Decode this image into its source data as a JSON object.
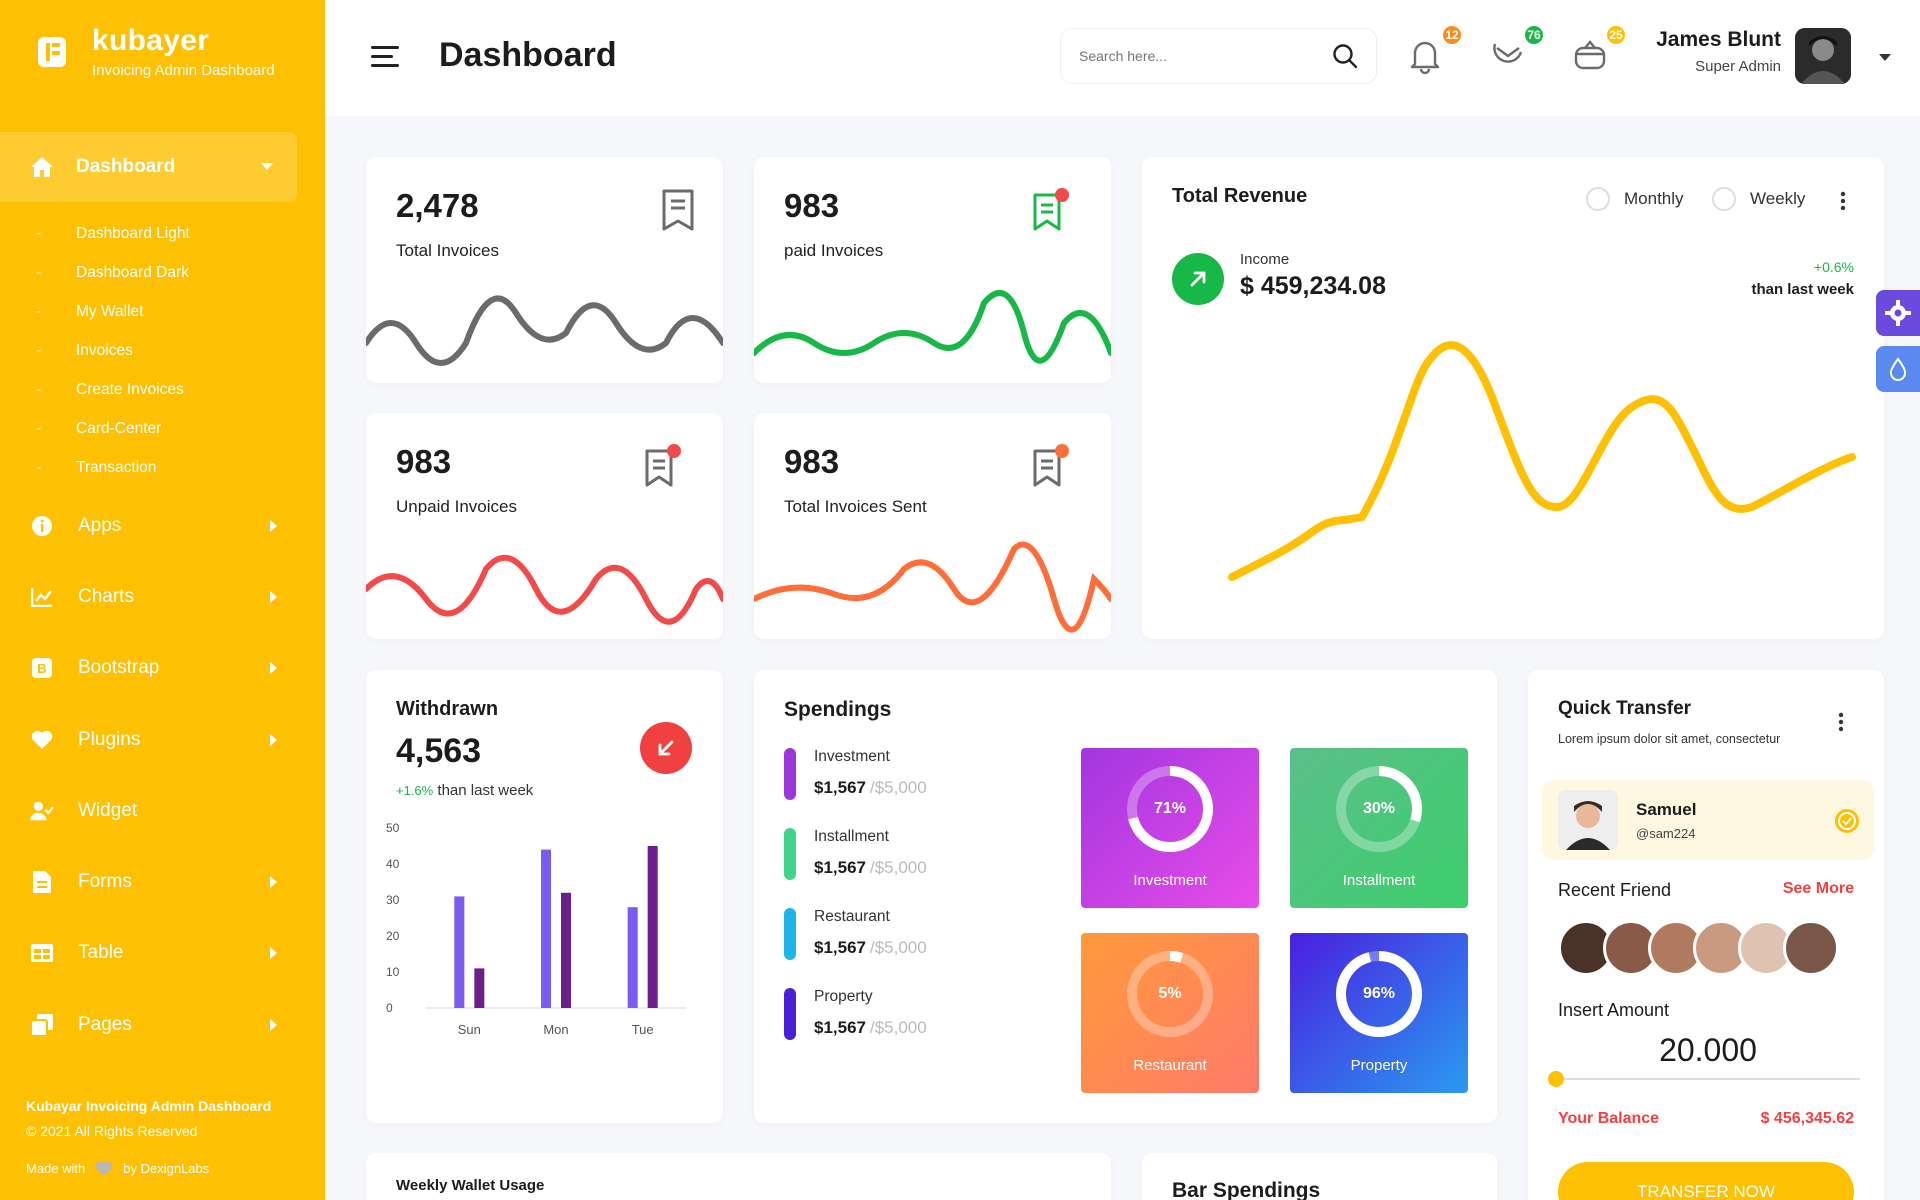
{
  "brand": {
    "name": "kubayer",
    "subtitle": "Invoicing Admin Dashboard"
  },
  "sidebar": {
    "active": {
      "label": "Dashboard",
      "icon": "home-icon"
    },
    "subitems": [
      "Dashboard Light",
      "Dashboard Dark",
      "My Wallet",
      "Invoices",
      "Create Invoices",
      "Card-Center",
      "Transaction"
    ],
    "items": [
      {
        "label": "Apps",
        "icon": "info-icon"
      },
      {
        "label": "Charts",
        "icon": "chart-icon"
      },
      {
        "label": "Bootstrap",
        "icon": "bootstrap-icon"
      },
      {
        "label": "Plugins",
        "icon": "heart-icon"
      },
      {
        "label": "Widget",
        "icon": "user-check-icon"
      },
      {
        "label": "Forms",
        "icon": "file-icon"
      },
      {
        "label": "Table",
        "icon": "table-icon"
      },
      {
        "label": "Pages",
        "icon": "copy-icon"
      }
    ],
    "footer": {
      "title": "Kubayar Invoicing Admin Dashboard",
      "copyright": "© 2021 All Rights Reserved",
      "made_prefix": "Made with",
      "made_suffix": "by DexignLabs"
    }
  },
  "header": {
    "title": "Dashboard",
    "search_placeholder": "Search here...",
    "notifications": {
      "count": "12",
      "color": "#ff8a1c"
    },
    "messages": {
      "count": "76",
      "color": "#18b848"
    },
    "gifts": {
      "count": "25",
      "color": "#fec003"
    },
    "user": {
      "name": "James Blunt",
      "role": "Super Admin"
    }
  },
  "stats": [
    {
      "value": "2,478",
      "label": "Total Invoices",
      "color": "#6b6b6b",
      "dot": false
    },
    {
      "value": "983",
      "label": "paid Invoices",
      "color": "#18b848",
      "dot": true
    },
    {
      "value": "983",
      "label": "Unpaid Invoices",
      "color": "#f04a4a",
      "dot": true
    },
    {
      "value": "983",
      "label": "Total Invoices Sent",
      "color": "#ff6d3a",
      "dot": true
    }
  ],
  "revenue": {
    "title": "Total Revenue",
    "options": [
      "Monthly",
      "Weekly"
    ],
    "income_label": "Income",
    "income_value": "$ 459,234.08",
    "change": "+0.6%",
    "change_text": "than last week",
    "color": "#fec003"
  },
  "withdrawn": {
    "title": "Withdrawn",
    "value": "4,563",
    "change": "+1.6%",
    "change_text": "than last week"
  },
  "chart_data": {
    "type": "bar",
    "categories": [
      "Sun",
      "Mon",
      "Tue"
    ],
    "series": [
      {
        "values": [
          31,
          44,
          28
        ],
        "color": "#7a5cf0"
      },
      {
        "values": [
          11,
          32,
          45
        ],
        "color": "#6a1f8a"
      }
    ],
    "ylim": [
      0,
      50
    ],
    "yticks": [
      "50",
      "40",
      "30",
      "20",
      "10",
      "0"
    ]
  },
  "spendings": {
    "title": "Spendings",
    "rows": [
      {
        "name": "Investment",
        "amount": "$1,567",
        "max": "/$5,000",
        "color": "#9b36d8"
      },
      {
        "name": "Installment",
        "amount": "$1,567",
        "max": "/$5,000",
        "color": "#3fd48a"
      },
      {
        "name": "Restaurant",
        "amount": "$1,567",
        "max": "/$5,000",
        "color": "#1eb4e8"
      },
      {
        "name": "Property",
        "amount": "$1,567",
        "max": "/$5,000",
        "color": "#4a1fd8"
      }
    ],
    "tiles": [
      {
        "name": "Investment",
        "pct": "71%",
        "value": 0.71,
        "from": "#a236e0",
        "to": "#e84ce8"
      },
      {
        "name": "Installment",
        "pct": "30%",
        "value": 0.3,
        "from": "#5bbf8a",
        "to": "#3ccf6c"
      },
      {
        "name": "Restaurant",
        "pct": "5%",
        "value": 0.05,
        "from": "#ff9a3a",
        "to": "#ff7a6a"
      },
      {
        "name": "Property",
        "pct": "96%",
        "value": 0.96,
        "from": "#4a1fe0",
        "to": "#2a9af0"
      }
    ]
  },
  "quick_transfer": {
    "title": "Quick Transfer",
    "subtitle": "Lorem ipsum dolor sit amet, consectetur",
    "contact": {
      "name": "Samuel",
      "handle": "@sam224"
    },
    "recent_title": "Recent Friend",
    "see_more": "See More",
    "amount_label": "Insert Amount",
    "amount": "20.000",
    "slider_value": 0,
    "balance_label": "Your Balance",
    "balance": "$ 456,345.62",
    "button": "TRANSFER NOW"
  },
  "lower": {
    "weekly": "Weekly Wallet Usage",
    "bar": "Bar Spendings"
  }
}
